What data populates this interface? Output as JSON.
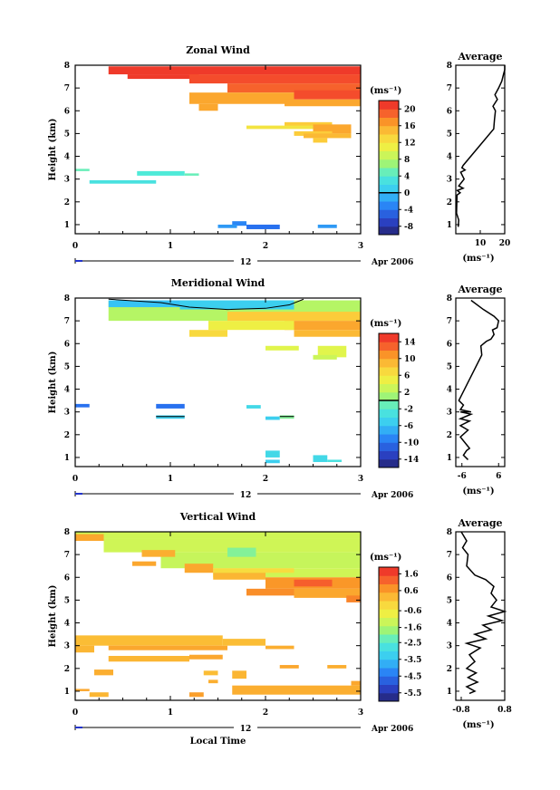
{
  "chart_data": [
    {
      "type": "heatmap",
      "title": "Zonal Wind",
      "ylabel": "Height (km)",
      "xticks": [
        "0",
        "1",
        "2",
        "3"
      ],
      "yticks": [
        "1",
        "2",
        "3",
        "4",
        "5",
        "6",
        "7",
        "8"
      ],
      "xlim": [
        0,
        3
      ],
      "ylim": [
        0.6,
        8
      ],
      "date_day": "12",
      "date_label": "Apr 2006",
      "colorbar": {
        "unit": "(ms⁻¹)",
        "ticks": [
          "-8",
          "-4",
          "0",
          "4",
          "8",
          "12",
          "16",
          "20"
        ],
        "range": [
          -10,
          22
        ],
        "zero_line": 0
      },
      "regions": [
        {
          "x0": 0.35,
          "x1": 3.0,
          "y0": 7.6,
          "y1": 7.95,
          "v": 21
        },
        {
          "x0": 0.55,
          "x1": 1.3,
          "y0": 7.4,
          "y1": 7.6,
          "v": 21
        },
        {
          "x0": 1.2,
          "x1": 3.0,
          "y0": 7.2,
          "y1": 7.6,
          "v": 20
        },
        {
          "x0": 1.6,
          "x1": 3.0,
          "y0": 6.8,
          "y1": 7.2,
          "v": 19
        },
        {
          "x0": 2.3,
          "x1": 3.0,
          "y0": 6.5,
          "y1": 6.9,
          "v": 20
        },
        {
          "x0": 1.2,
          "x1": 2.3,
          "y0": 6.3,
          "y1": 6.8,
          "v": 16
        },
        {
          "x0": 2.2,
          "x1": 3.0,
          "y0": 6.2,
          "y1": 6.5,
          "v": 16
        },
        {
          "x0": 1.3,
          "x1": 1.5,
          "y0": 6.0,
          "y1": 6.3,
          "v": 16
        },
        {
          "x0": 2.2,
          "x1": 2.7,
          "y0": 5.3,
          "y1": 5.5,
          "v": 14
        },
        {
          "x0": 1.8,
          "x1": 2.5,
          "y0": 5.2,
          "y1": 5.35,
          "v": 12
        },
        {
          "x0": 2.5,
          "x1": 2.9,
          "y0": 5.0,
          "y1": 5.4,
          "v": 16
        },
        {
          "x0": 2.3,
          "x1": 2.7,
          "y0": 4.9,
          "y1": 5.1,
          "v": 14
        },
        {
          "x0": 2.4,
          "x1": 2.9,
          "y0": 4.8,
          "y1": 5.0,
          "v": 15
        },
        {
          "x0": 2.5,
          "x1": 2.65,
          "y0": 4.6,
          "y1": 4.8,
          "v": 14
        },
        {
          "x0": 0.0,
          "x1": 0.15,
          "y0": 3.35,
          "y1": 3.45,
          "v": 5
        },
        {
          "x0": 0.65,
          "x1": 1.15,
          "y0": 3.15,
          "y1": 3.35,
          "v": 4
        },
        {
          "x0": 1.15,
          "x1": 1.3,
          "y0": 3.15,
          "y1": 3.25,
          "v": 5
        },
        {
          "x0": 0.15,
          "x1": 0.85,
          "y0": 2.8,
          "y1": 2.95,
          "v": 3
        },
        {
          "x0": 1.65,
          "x1": 1.8,
          "y0": 0.95,
          "y1": 1.15,
          "v": -3
        },
        {
          "x0": 1.5,
          "x1": 1.7,
          "y0": 0.85,
          "y1": 1.0,
          "v": -2
        },
        {
          "x0": 1.8,
          "x1": 2.15,
          "y0": 0.8,
          "y1": 1.0,
          "v": -4
        },
        {
          "x0": 2.55,
          "x1": 2.75,
          "y0": 0.85,
          "y1": 1.0,
          "v": -2
        }
      ]
    },
    {
      "type": "line",
      "title": "Average",
      "xlabel": "(ms⁻¹)",
      "xticks": [
        "10",
        "20"
      ],
      "xlim": [
        0,
        20
      ],
      "yticks": [
        "1",
        "2",
        "3",
        "4",
        "5",
        "6",
        "7",
        "8"
      ],
      "ylim": [
        0.6,
        8
      ],
      "points": [
        [
          1.0,
          0.9
        ],
        [
          1.2,
          1.2
        ],
        [
          0.3,
          1.5
        ],
        [
          0.5,
          2.3
        ],
        [
          1.8,
          2.4
        ],
        [
          0.6,
          2.5
        ],
        [
          3.0,
          2.6
        ],
        [
          1.2,
          2.7
        ],
        [
          3.4,
          3.0
        ],
        [
          2.0,
          3.3
        ],
        [
          3.8,
          3.4
        ],
        [
          2.5,
          3.5
        ],
        [
          3.0,
          3.6
        ],
        [
          15.5,
          5.2
        ],
        [
          15.8,
          5.6
        ],
        [
          16.2,
          6.0
        ],
        [
          15.2,
          6.2
        ],
        [
          17.0,
          6.5
        ],
        [
          16.0,
          6.7
        ],
        [
          17.5,
          7.0
        ],
        [
          18.8,
          7.3
        ],
        [
          19.5,
          7.6
        ],
        [
          20.0,
          7.8
        ],
        [
          21.0,
          8.0
        ]
      ]
    },
    {
      "type": "heatmap",
      "title": "Meridional Wind",
      "ylabel": "Height (km)",
      "xticks": [
        "0",
        "1",
        "2",
        "3"
      ],
      "yticks": [
        "1",
        "2",
        "3",
        "4",
        "5",
        "6",
        "7",
        "8"
      ],
      "xlim": [
        0,
        3
      ],
      "ylim": [
        0.6,
        8
      ],
      "date_day": "12",
      "date_label": "Apr 2006",
      "colorbar": {
        "unit": "(ms⁻¹)",
        "ticks": [
          "-14",
          "-10",
          "-6",
          "-2",
          "2",
          "6",
          "10",
          "14"
        ],
        "range": [
          -16,
          16
        ],
        "zero_line": 0
      },
      "regions": [
        {
          "x0": 0.35,
          "x1": 3.0,
          "y0": 7.0,
          "y1": 7.9,
          "v": 2
        },
        {
          "x0": 0.35,
          "x1": 1.1,
          "y0": 7.6,
          "y1": 7.9,
          "v": -6
        },
        {
          "x0": 1.1,
          "x1": 2.3,
          "y0": 7.5,
          "y1": 7.9,
          "v": -5
        },
        {
          "x0": 1.6,
          "x1": 3.0,
          "y0": 7.0,
          "y1": 7.4,
          "v": 8
        },
        {
          "x0": 2.2,
          "x1": 3.0,
          "y0": 6.6,
          "y1": 7.0,
          "v": 10
        },
        {
          "x0": 1.4,
          "x1": 2.3,
          "y0": 6.6,
          "y1": 7.0,
          "v": 5
        },
        {
          "x0": 2.3,
          "x1": 3.0,
          "y0": 6.3,
          "y1": 6.6,
          "v": 9
        },
        {
          "x0": 1.2,
          "x1": 1.6,
          "y0": 6.3,
          "y1": 6.6,
          "v": 7
        },
        {
          "x0": 2.0,
          "x1": 2.35,
          "y0": 5.7,
          "y1": 5.9,
          "v": 4
        },
        {
          "x0": 2.55,
          "x1": 2.85,
          "y0": 5.4,
          "y1": 5.9,
          "v": 4
        },
        {
          "x0": 2.5,
          "x1": 2.75,
          "y0": 5.3,
          "y1": 5.5,
          "v": 3
        },
        {
          "x0": 0.0,
          "x1": 0.15,
          "y0": 3.2,
          "y1": 3.35,
          "v": -10
        },
        {
          "x0": 0.85,
          "x1": 1.15,
          "y0": 3.15,
          "y1": 3.35,
          "v": -10
        },
        {
          "x0": 1.8,
          "x1": 1.95,
          "y0": 3.15,
          "y1": 3.3,
          "v": -4
        },
        {
          "x0": 0.85,
          "x1": 1.15,
          "y0": 2.7,
          "y1": 2.85,
          "v": -5
        },
        {
          "x0": 2.0,
          "x1": 2.15,
          "y0": 2.65,
          "y1": 2.8,
          "v": -5
        },
        {
          "x0": 2.15,
          "x1": 2.3,
          "y0": 2.7,
          "y1": 2.85,
          "v": 0
        },
        {
          "x0": 2.0,
          "x1": 2.15,
          "y0": 1.0,
          "y1": 1.3,
          "v": -4
        },
        {
          "x0": 2.0,
          "x1": 2.15,
          "y0": 0.75,
          "y1": 0.9,
          "v": -5
        },
        {
          "x0": 2.5,
          "x1": 2.65,
          "y0": 0.8,
          "y1": 1.1,
          "v": -4
        },
        {
          "x0": 2.65,
          "x1": 2.8,
          "y0": 0.8,
          "y1": 0.9,
          "v": -3
        }
      ],
      "zero_contours": [
        [
          [
            0.35,
            7.95
          ],
          [
            0.9,
            7.8
          ],
          [
            1.2,
            7.6
          ],
          [
            1.6,
            7.5
          ],
          [
            2.0,
            7.55
          ],
          [
            2.25,
            7.7
          ],
          [
            2.4,
            7.95
          ]
        ],
        [
          [
            0.85,
            2.8
          ],
          [
            1.15,
            2.8
          ]
        ],
        [
          [
            2.15,
            2.8
          ],
          [
            2.3,
            2.8
          ]
        ]
      ]
    },
    {
      "type": "line",
      "title": "Average",
      "xlabel": "(ms⁻¹)",
      "xticks": [
        "-6",
        "6"
      ],
      "xlim": [
        -8,
        8
      ],
      "yticks": [
        "1",
        "2",
        "3",
        "4",
        "5",
        "6",
        "7",
        "8"
      ],
      "ylim": [
        0.6,
        8
      ],
      "points": [
        [
          -4.0,
          0.9
        ],
        [
          -5.5,
          1.1
        ],
        [
          -4.5,
          1.3
        ],
        [
          -3.5,
          1.4
        ],
        [
          -6.5,
          1.9
        ],
        [
          -4.0,
          2.2
        ],
        [
          -6.5,
          2.4
        ],
        [
          -3.5,
          2.6
        ],
        [
          -6.5,
          2.7
        ],
        [
          -3.0,
          2.9
        ],
        [
          -6.5,
          3.0
        ],
        [
          -3.0,
          3.0
        ],
        [
          -6.5,
          3.1
        ],
        [
          -5.5,
          3.3
        ],
        [
          -7.0,
          3.5
        ],
        [
          0.5,
          5.5
        ],
        [
          0.2,
          5.9
        ],
        [
          2.0,
          6.1
        ],
        [
          3.5,
          6.2
        ],
        [
          4.5,
          6.4
        ],
        [
          4.0,
          6.6
        ],
        [
          5.5,
          6.7
        ],
        [
          6.0,
          7.0
        ],
        [
          4.5,
          7.2
        ],
        [
          1.0,
          7.5
        ],
        [
          -3.0,
          7.9
        ]
      ]
    },
    {
      "type": "heatmap",
      "title": "Vertical Wind",
      "ylabel": "Height (km)",
      "xlabel": "Local Time",
      "xticks": [
        "0",
        "1",
        "2",
        "3"
      ],
      "yticks": [
        "1",
        "2",
        "3",
        "4",
        "5",
        "6",
        "7",
        "8"
      ],
      "xlim": [
        0,
        3
      ],
      "ylim": [
        0.6,
        8
      ],
      "date_day": "12",
      "date_label": "Apr 2006",
      "colorbar": {
        "unit": "(ms⁻¹)",
        "ticks": [
          "-5.5",
          "-4.5",
          "-3.5",
          "-2.5",
          "-1.6",
          "-0.6",
          "0.6",
          "1.6"
        ],
        "range": [
          -6,
          2
        ]
      },
      "regions": [
        {
          "x0": 0.0,
          "x1": 3.0,
          "y0": 7.7,
          "y1": 8.0,
          "v": -1.2
        },
        {
          "x0": 0.0,
          "x1": 0.3,
          "y0": 7.6,
          "y1": 7.9,
          "v": 0.5
        },
        {
          "x0": 0.3,
          "x1": 3.0,
          "y0": 7.1,
          "y1": 7.7,
          "v": -1.2
        },
        {
          "x0": 0.9,
          "x1": 3.0,
          "y0": 6.4,
          "y1": 7.1,
          "v": -1.3
        },
        {
          "x0": 0.7,
          "x1": 1.05,
          "y0": 6.9,
          "y1": 7.2,
          "v": 0.4
        },
        {
          "x0": 1.6,
          "x1": 1.9,
          "y0": 6.9,
          "y1": 7.3,
          "v": -2.0
        },
        {
          "x0": 1.45,
          "x1": 3.0,
          "y0": 6.0,
          "y1": 6.4,
          "v": -1.2
        },
        {
          "x0": 1.45,
          "x1": 2.3,
          "y0": 6.2,
          "y1": 6.4,
          "v": -0.3
        },
        {
          "x0": 0.6,
          "x1": 0.85,
          "y0": 6.5,
          "y1": 6.7,
          "v": 0.5
        },
        {
          "x0": 1.15,
          "x1": 1.45,
          "y0": 6.2,
          "y1": 6.6,
          "v": 0.5
        },
        {
          "x0": 1.45,
          "x1": 2.0,
          "y0": 5.9,
          "y1": 6.2,
          "v": 0.3
        },
        {
          "x0": 2.0,
          "x1": 3.0,
          "y0": 5.5,
          "y1": 6.0,
          "v": 0.7
        },
        {
          "x0": 2.3,
          "x1": 2.7,
          "y0": 5.6,
          "y1": 5.9,
          "v": 1.3
        },
        {
          "x0": 1.8,
          "x1": 2.3,
          "y0": 5.2,
          "y1": 5.5,
          "v": 0.8
        },
        {
          "x0": 2.3,
          "x1": 3.0,
          "y0": 5.1,
          "y1": 5.5,
          "v": 0.5
        },
        {
          "x0": 2.85,
          "x1": 3.0,
          "y0": 4.9,
          "y1": 5.2,
          "v": 0.9
        },
        {
          "x0": 0.0,
          "x1": 1.55,
          "y0": 3.0,
          "y1": 3.45,
          "v": 0.2
        },
        {
          "x0": 0.0,
          "x1": 0.2,
          "y0": 2.7,
          "y1": 3.0,
          "v": 0.3
        },
        {
          "x0": 0.35,
          "x1": 1.6,
          "y0": 2.8,
          "y1": 3.0,
          "v": 0.5
        },
        {
          "x0": 1.55,
          "x1": 2.0,
          "y0": 3.0,
          "y1": 3.3,
          "v": 0.2
        },
        {
          "x0": 2.0,
          "x1": 2.3,
          "y0": 2.85,
          "y1": 3.0,
          "v": 0.4
        },
        {
          "x0": 0.35,
          "x1": 1.2,
          "y0": 2.3,
          "y1": 2.55,
          "v": 0.3
        },
        {
          "x0": 1.2,
          "x1": 1.55,
          "y0": 2.4,
          "y1": 2.6,
          "v": 0.5
        },
        {
          "x0": 0.2,
          "x1": 0.4,
          "y0": 1.7,
          "y1": 1.95,
          "v": 0.4
        },
        {
          "x0": 1.65,
          "x1": 1.8,
          "y0": 1.55,
          "y1": 1.9,
          "v": 0.3
        },
        {
          "x0": 1.35,
          "x1": 1.5,
          "y0": 1.7,
          "y1": 1.9,
          "v": 0.2
        },
        {
          "x0": 2.15,
          "x1": 2.35,
          "y0": 2.0,
          "y1": 2.15,
          "v": 0.5
        },
        {
          "x0": 2.65,
          "x1": 2.85,
          "y0": 2.0,
          "y1": 2.15,
          "v": 0.4
        },
        {
          "x0": 1.4,
          "x1": 1.5,
          "y0": 1.35,
          "y1": 1.5,
          "v": 0.4
        },
        {
          "x0": 0.0,
          "x1": 0.15,
          "y0": 1.0,
          "y1": 1.1,
          "v": 0.5
        },
        {
          "x0": 0.15,
          "x1": 0.35,
          "y0": 0.75,
          "y1": 0.95,
          "v": 0.3
        },
        {
          "x0": 1.2,
          "x1": 1.35,
          "y0": 0.75,
          "y1": 0.95,
          "v": 0.6
        },
        {
          "x0": 1.65,
          "x1": 3.0,
          "y0": 0.85,
          "y1": 1.25,
          "v": 0.4
        },
        {
          "x0": 2.9,
          "x1": 3.0,
          "y0": 1.25,
          "y1": 1.45,
          "v": 0.5
        }
      ]
    },
    {
      "type": "line",
      "title": "Average",
      "xlabel": "(ms⁻¹)",
      "xticks": [
        "-0.8",
        "0.8"
      ],
      "xlim": [
        -1,
        0.8
      ],
      "yticks": [
        "1",
        "2",
        "3",
        "4",
        "5",
        "6",
        "7",
        "8"
      ],
      "ylim": [
        0.6,
        8
      ],
      "points": [
        [
          -0.5,
          0.9
        ],
        [
          -0.3,
          1.0
        ],
        [
          -0.6,
          1.2
        ],
        [
          -0.2,
          1.4
        ],
        [
          -0.55,
          1.6
        ],
        [
          -0.25,
          1.8
        ],
        [
          -0.6,
          2.0
        ],
        [
          -0.3,
          2.3
        ],
        [
          -0.5,
          2.6
        ],
        [
          -0.1,
          2.9
        ],
        [
          -0.6,
          3.1
        ],
        [
          0.1,
          3.3
        ],
        [
          -0.3,
          3.5
        ],
        [
          0.3,
          3.7
        ],
        [
          0.0,
          3.9
        ],
        [
          0.7,
          4.1
        ],
        [
          0.2,
          4.3
        ],
        [
          0.8,
          4.5
        ],
        [
          0.3,
          4.7
        ],
        [
          0.5,
          5.0
        ],
        [
          0.3,
          5.3
        ],
        [
          0.4,
          5.6
        ],
        [
          0.1,
          5.9
        ],
        [
          -0.3,
          6.1
        ],
        [
          -0.6,
          6.5
        ],
        [
          -0.55,
          7.0
        ],
        [
          -0.75,
          7.3
        ],
        [
          -0.6,
          7.6
        ],
        [
          -0.8,
          8.0
        ]
      ]
    }
  ]
}
